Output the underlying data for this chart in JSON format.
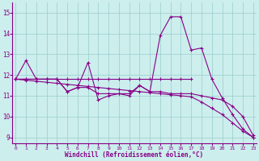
{
  "xlabel": "Windchill (Refroidissement éolien,°C)",
  "bg_color": "#cceeed",
  "line_color": "#880088",
  "grid_color": "#99cccc",
  "x_ticks": [
    0,
    1,
    2,
    3,
    4,
    5,
    6,
    7,
    8,
    9,
    10,
    11,
    12,
    13,
    14,
    15,
    16,
    17,
    18,
    19,
    20,
    21,
    22,
    23
  ],
  "y_ticks": [
    9,
    10,
    11,
    12,
    13,
    14,
    15
  ],
  "ylim": [
    8.7,
    15.5
  ],
  "xlim": [
    -0.3,
    23.3
  ],
  "series": [
    {
      "x": [
        0,
        1,
        2,
        3,
        4,
        5,
        6,
        7,
        8,
        9,
        10,
        11,
        12,
        13,
        14,
        15,
        16,
        17,
        18,
        19,
        20,
        21,
        22,
        23
      ],
      "y": [
        11.8,
        12.7,
        11.8,
        11.8,
        11.8,
        11.2,
        11.4,
        12.6,
        10.8,
        11.0,
        11.1,
        11.0,
        11.5,
        11.2,
        13.9,
        14.8,
        14.8,
        13.2,
        13.3,
        11.8,
        10.9,
        10.1,
        9.4,
        9.0
      ]
    },
    {
      "x": [
        0,
        1,
        2,
        3,
        4,
        5,
        6,
        7,
        8,
        9,
        10,
        11,
        12,
        13,
        14,
        15,
        16,
        17
      ],
      "y": [
        11.8,
        11.8,
        11.8,
        11.8,
        11.8,
        11.8,
        11.8,
        11.8,
        11.8,
        11.8,
        11.8,
        11.8,
        11.8,
        11.8,
        11.8,
        11.8,
        11.8,
        11.8
      ]
    },
    {
      "x": [
        0,
        1,
        2,
        3,
        4,
        5,
        6,
        7,
        8,
        9,
        10,
        11,
        12,
        13,
        14,
        15,
        16,
        17,
        18,
        19,
        20,
        21,
        22,
        23
      ],
      "y": [
        11.8,
        11.75,
        11.7,
        11.65,
        11.6,
        11.55,
        11.5,
        11.45,
        11.4,
        11.35,
        11.3,
        11.25,
        11.2,
        11.15,
        11.1,
        11.05,
        11.0,
        10.95,
        10.7,
        10.4,
        10.1,
        9.7,
        9.3,
        9.0
      ]
    },
    {
      "x": [
        0,
        1,
        2,
        3,
        4,
        5,
        6,
        7,
        8,
        9,
        10,
        11,
        12,
        13,
        14,
        15,
        16,
        17,
        18,
        19,
        20,
        21,
        22,
        23
      ],
      "y": [
        11.8,
        11.8,
        11.8,
        11.8,
        11.8,
        11.2,
        11.4,
        11.4,
        11.1,
        11.1,
        11.1,
        11.1,
        11.5,
        11.2,
        11.2,
        11.1,
        11.1,
        11.1,
        11.0,
        10.9,
        10.8,
        10.5,
        10.0,
        9.1
      ]
    }
  ]
}
